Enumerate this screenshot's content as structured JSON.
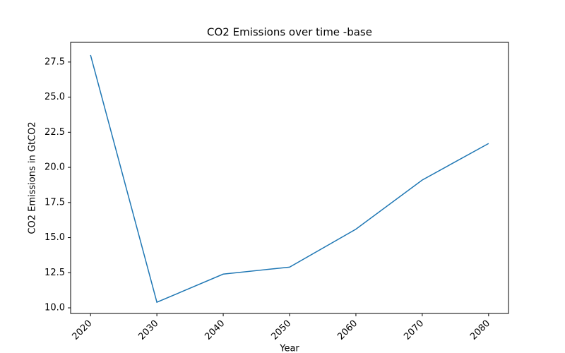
{
  "chart_data": {
    "type": "line",
    "title": "CO2 Emissions over time -base",
    "x_label": "Year",
    "y_label": "CO2 Emissions in GtCO2",
    "x": [
      2020,
      2030,
      2040,
      2050,
      2060,
      2070,
      2080
    ],
    "series": [
      {
        "name": "CO2 Emissions",
        "color": "#1f77b4",
        "values": [
          28.0,
          10.4,
          12.4,
          12.9,
          15.6,
          19.1,
          21.7
        ]
      }
    ],
    "xlim": [
      2017,
      2083
    ],
    "ylim": [
      9.6,
      28.9
    ],
    "xticks": [
      2020,
      2030,
      2040,
      2050,
      2060,
      2070,
      2080
    ],
    "yticks": [
      {
        "value": 10,
        "label": "10.0"
      },
      {
        "value": 12.5,
        "label": "12.5"
      },
      {
        "value": 15,
        "label": "15.0"
      },
      {
        "value": 17.5,
        "label": "17.5"
      },
      {
        "value": 20,
        "label": "20.0"
      },
      {
        "value": 22.5,
        "label": "22.5"
      },
      {
        "value": 25,
        "label": "25.0"
      },
      {
        "value": 27.5,
        "label": "27.5"
      }
    ],
    "grid": false,
    "legend": false
  }
}
